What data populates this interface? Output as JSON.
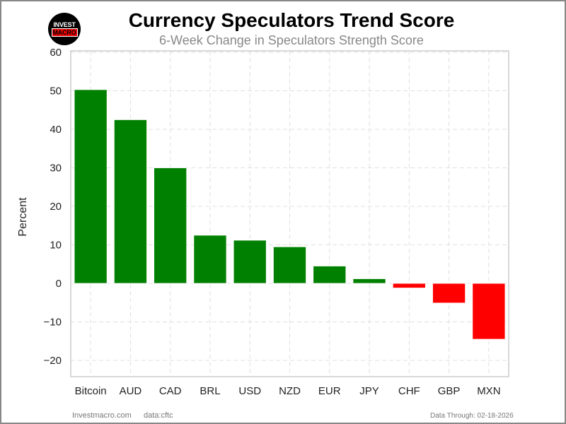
{
  "header": {
    "logo_line1": "INVEST",
    "logo_line2": "MACRO",
    "title": "Currency Speculators Trend Score",
    "subtitle": "6-Week Change in Speculators Strength Score"
  },
  "footer": {
    "site": "Investmacro.com",
    "source": "data:cftc",
    "data_through": "Data Through: 02-18-2026"
  },
  "colors": {
    "positive": "#008000",
    "negative": "#ff0000",
    "grid": "#e0e0e0",
    "axis_frame": "#cccccc"
  },
  "chart_data": {
    "type": "bar",
    "title": "Currency Speculators Trend Score",
    "subtitle": "6-Week Change in Speculators Strength Score",
    "xlabel": "",
    "ylabel": "Percent",
    "categories": [
      "Bitcoin",
      "AUD",
      "CAD",
      "BRL",
      "USD",
      "NZD",
      "EUR",
      "JPY",
      "CHF",
      "GBP",
      "MXN"
    ],
    "values": [
      50.3,
      42.5,
      30.0,
      12.5,
      11.2,
      9.5,
      4.5,
      1.2,
      -1.2,
      -5.1,
      -14.5
    ],
    "ylim": [
      -24.5,
      60.3
    ],
    "yticks": [
      60,
      50,
      40,
      30,
      20,
      10,
      0,
      -10,
      -20
    ],
    "ytick_labels": [
      "60",
      "50",
      "40",
      "30",
      "20",
      "10",
      "0",
      "−10",
      "−20"
    ],
    "grid": true,
    "grid_style": "dashed",
    "legend": null
  }
}
